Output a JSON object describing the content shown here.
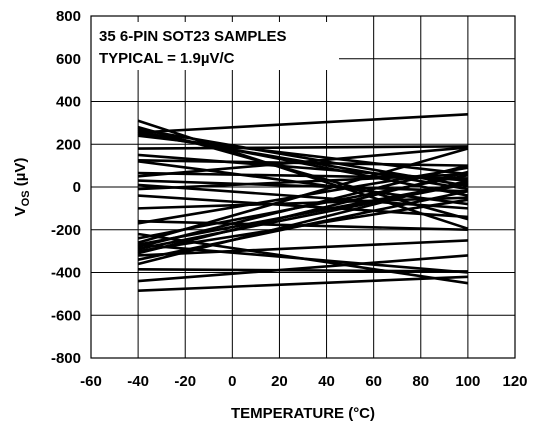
{
  "chart_data": {
    "type": "line",
    "title": "",
    "annotations": [
      "35 6-PIN SOT23 SAMPLES",
      "TYPICAL =  1.9µV/C"
    ],
    "xlabel": "TEMPERATURE (°C)",
    "ylabel_main": "V",
    "ylabel_sub": "OS",
    "ylabel_unit": " (µV)",
    "xlim": [
      -60,
      120
    ],
    "ylim": [
      -800,
      800
    ],
    "x_ticks": [
      -60,
      -40,
      -20,
      0,
      20,
      40,
      60,
      80,
      100,
      120
    ],
    "y_ticks": [
      -800,
      -600,
      -400,
      -200,
      0,
      200,
      400,
      600,
      800
    ],
    "x_tick_labels": [
      "-60",
      "-40",
      "-20",
      "0",
      "20",
      "40",
      "60",
      "80",
      "100",
      "120"
    ],
    "y_tick_labels": [
      "-800",
      "-600",
      "-400",
      "-200",
      "0",
      "200",
      "400",
      "600",
      "800"
    ],
    "grid": true,
    "x": [
      -40,
      100
    ],
    "series": [
      {
        "values": [
          255,
          340
        ]
      },
      {
        "values": [
          310,
          -195
        ]
      },
      {
        "values": [
          280,
          -150
        ]
      },
      {
        "values": [
          270,
          5
        ]
      },
      {
        "values": [
          260,
          -40
        ]
      },
      {
        "values": [
          250,
          -10
        ]
      },
      {
        "values": [
          240,
          60
        ]
      },
      {
        "values": [
          180,
          190
        ]
      },
      {
        "values": [
          150,
          30
        ]
      },
      {
        "values": [
          125,
          100
        ]
      },
      {
        "values": [
          120,
          -80
        ]
      },
      {
        "values": [
          65,
          40
        ]
      },
      {
        "values": [
          50,
          185
        ]
      },
      {
        "values": [
          30,
          -20
        ]
      },
      {
        "values": [
          10,
          -100
        ]
      },
      {
        "values": [
          -10,
          60
        ]
      },
      {
        "values": [
          -40,
          -140
        ]
      },
      {
        "values": [
          -100,
          -50
        ]
      },
      {
        "values": [
          -160,
          -200
        ]
      },
      {
        "values": [
          -170,
          90
        ]
      },
      {
        "values": [
          -240,
          55
        ]
      },
      {
        "values": [
          -260,
          180
        ]
      },
      {
        "values": [
          -270,
          20
        ]
      },
      {
        "values": [
          -280,
          100
        ]
      },
      {
        "values": [
          -290,
          15
        ]
      },
      {
        "values": [
          -300,
          -60
        ]
      },
      {
        "values": [
          -310,
          70
        ]
      },
      {
        "values": [
          -340,
          -20
        ]
      },
      {
        "values": [
          -360,
          30
        ]
      },
      {
        "values": [
          -385,
          -395
        ]
      },
      {
        "values": [
          -220,
          -450
        ]
      },
      {
        "values": [
          -270,
          -400
        ]
      },
      {
        "values": [
          -440,
          -320
        ]
      },
      {
        "values": [
          -485,
          -420
        ]
      },
      {
        "values": [
          -320,
          -250
        ]
      }
    ]
  }
}
